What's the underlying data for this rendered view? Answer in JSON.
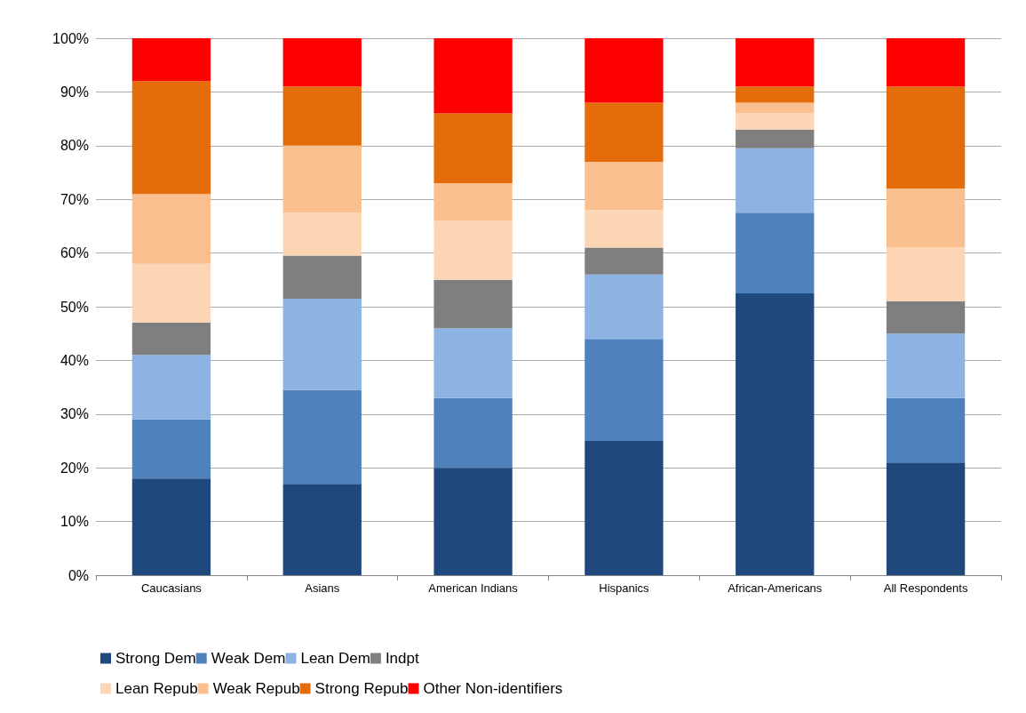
{
  "chart_data": {
    "type": "bar",
    "stacked": true,
    "categories": [
      "Caucasians",
      "Asians",
      "American Indians",
      "Hispanics",
      "African-Americans",
      "All Respondents"
    ],
    "series": [
      {
        "name": "Strong Dem",
        "color": "#1f497d",
        "values": [
          18,
          17,
          20,
          25,
          52.5,
          21
        ]
      },
      {
        "name": "Weak Dem",
        "color": "#4f81bd",
        "values": [
          11,
          17.5,
          13,
          19,
          15,
          12
        ]
      },
      {
        "name": "Lean Dem",
        "color": "#8db3e2",
        "values": [
          12,
          17,
          13,
          12,
          12,
          12
        ]
      },
      {
        "name": "Indpt",
        "color": "#7f7f7f",
        "values": [
          6,
          8,
          9,
          5,
          3.5,
          6
        ]
      },
      {
        "name": "Lean Repub",
        "color": "#fcd5b4",
        "values": [
          11,
          8,
          11,
          7,
          3,
          10
        ]
      },
      {
        "name": "Weak Repub",
        "color": "#fabf8f",
        "values": [
          13,
          12.5,
          7,
          9,
          2,
          11
        ]
      },
      {
        "name": "Strong Repub",
        "color": "#e46c0a",
        "values": [
          21,
          11,
          13,
          11,
          3,
          19
        ]
      },
      {
        "name": "Other Non-identifiers",
        "color": "#ff0000",
        "values": [
          8,
          9,
          14,
          12,
          9,
          9
        ]
      }
    ],
    "ylim": [
      0,
      100
    ],
    "yticks": [
      {
        "value": 0,
        "label": "0%"
      },
      {
        "value": 10,
        "label": "10%"
      },
      {
        "value": 20,
        "label": "20%"
      },
      {
        "value": 30,
        "label": "30%"
      },
      {
        "value": 40,
        "label": "40%"
      },
      {
        "value": 50,
        "label": "50%"
      },
      {
        "value": 60,
        "label": "60%"
      },
      {
        "value": 70,
        "label": "70%"
      },
      {
        "value": 80,
        "label": "80%"
      },
      {
        "value": 90,
        "label": "90%"
      },
      {
        "value": 100,
        "label": "100%"
      }
    ],
    "grid": "y",
    "legend": "bottom"
  }
}
